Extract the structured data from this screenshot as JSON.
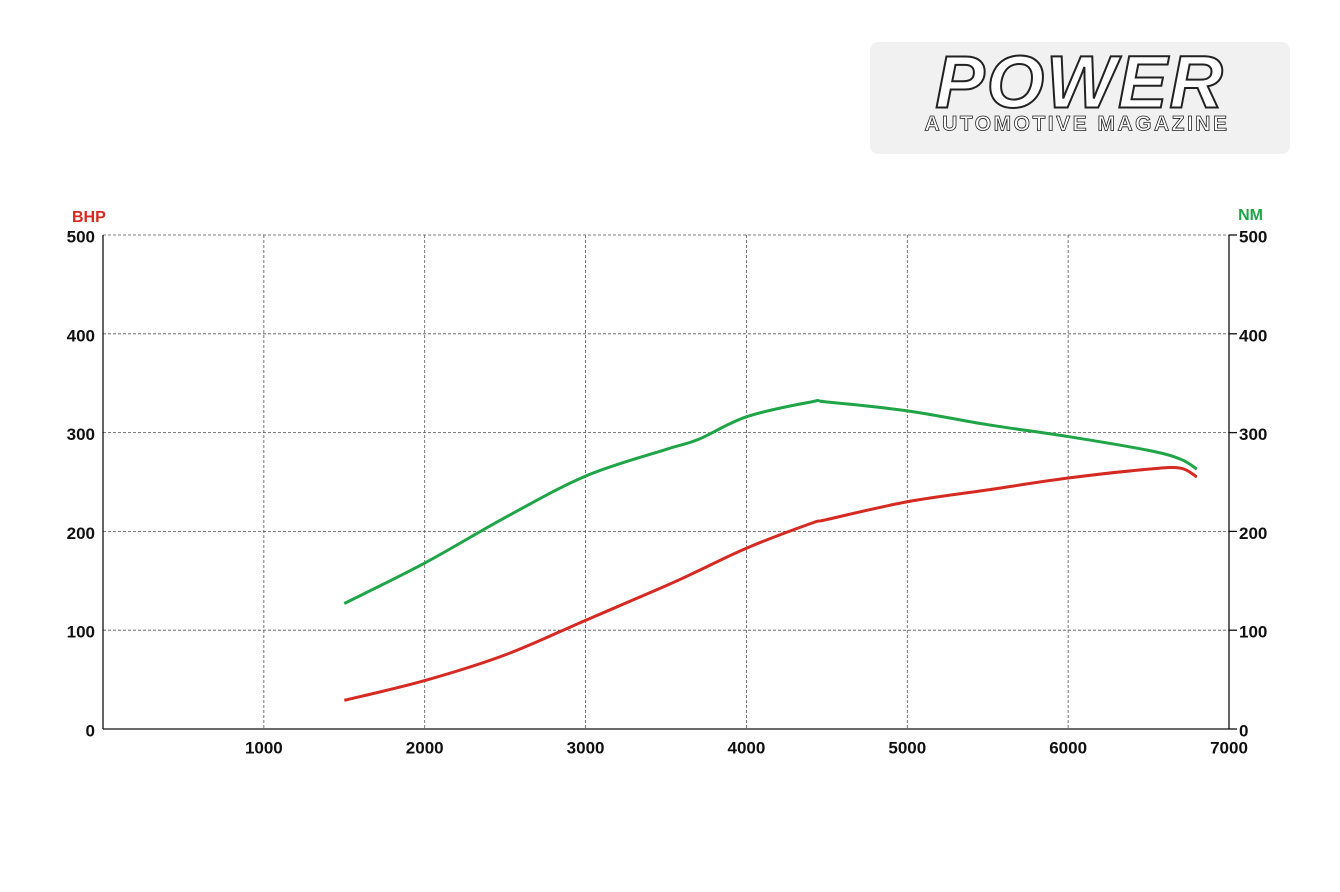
{
  "logo": {
    "title": "POWER",
    "subtitle": "AUTOMOTIVE MAGAZINE"
  },
  "chart_data": {
    "type": "line",
    "x": [
      1500,
      2000,
      2500,
      3000,
      3500,
      3700,
      4000,
      4400,
      4500,
      5000,
      5500,
      6000,
      6500,
      6700,
      6800
    ],
    "series": [
      {
        "name": "BHP",
        "color": "#d42a22",
        "values": [
          29,
          49,
          75,
          110,
          145,
          160,
          183,
          208,
          212,
          230,
          242,
          254,
          263,
          264,
          255
        ]
      },
      {
        "name": "NM",
        "color": "#1fa447",
        "axis": "y2",
        "values": [
          127,
          168,
          214,
          256,
          283,
          293,
          316,
          331,
          331,
          322,
          308,
          296,
          282,
          273,
          263
        ]
      }
    ],
    "xlim": [
      0,
      7000
    ],
    "xticks": [
      1000,
      2000,
      3000,
      4000,
      5000,
      6000,
      7000
    ],
    "ylim": [
      0,
      500
    ],
    "yticks": [
      0,
      100,
      200,
      300,
      400,
      500
    ],
    "y2lim": [
      0,
      500
    ],
    "y2ticks": [
      0,
      100,
      200,
      300,
      400,
      500
    ],
    "grid": true
  }
}
